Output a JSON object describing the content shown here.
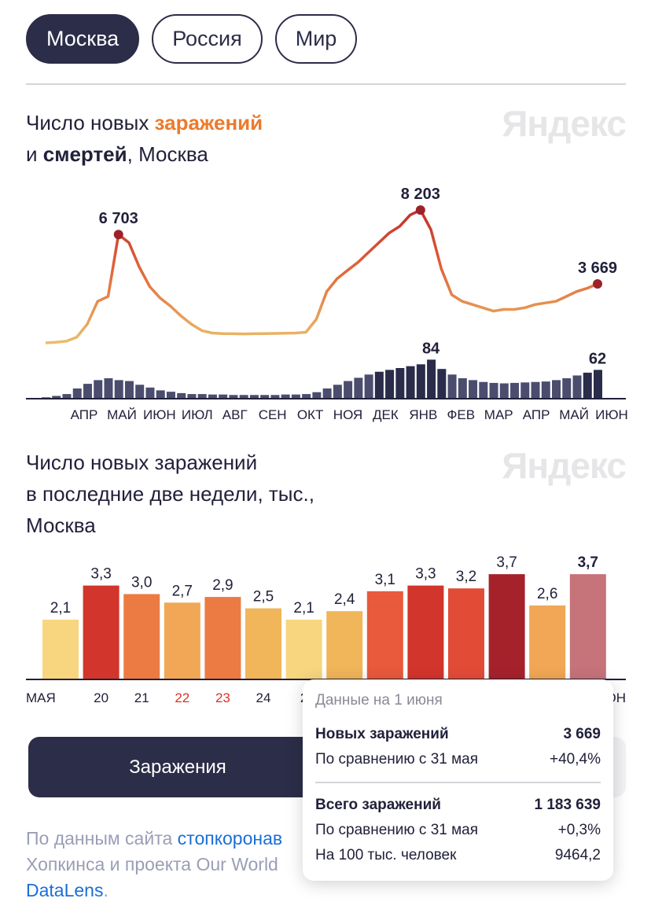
{
  "region_tabs": [
    {
      "label": "Москва",
      "active": true
    },
    {
      "label": "Россия",
      "active": false
    },
    {
      "label": "Мир",
      "active": false
    }
  ],
  "watermark": "Яндекс",
  "chart1": {
    "title_line1_a": "Число новых ",
    "title_line1_b": "заражений",
    "title_line2_a": "и ",
    "title_line2_b": "смертей",
    "title_line2_c": ", Москва"
  },
  "chart2": {
    "title_line1": "Число новых заражений",
    "title_line2": "в последние две недели, тыс.,",
    "title_line3": "Москва"
  },
  "chart_data": [
    {
      "type": "line",
      "title": "Число новых заражений и смертей, Москва",
      "months": [
        "АПР",
        "МАЙ",
        "ИЮН",
        "ИЮЛ",
        "АВГ",
        "СЕН",
        "ОКТ",
        "НОЯ",
        "ДЕК",
        "ЯНВ",
        "ФЕВ",
        "МАР",
        "АПР",
        "МАЙ",
        "ИЮН"
      ],
      "series": [
        {
          "name": "заражений",
          "ylim": [
            0,
            8500
          ],
          "values": [
            50,
            80,
            150,
            400,
            1200,
            2600,
            2900,
            6703,
            6200,
            4700,
            3500,
            2800,
            2300,
            1700,
            1200,
            800,
            650,
            620,
            610,
            600,
            610,
            620,
            630,
            640,
            650,
            700,
            1500,
            3200,
            4000,
            4500,
            5000,
            5600,
            6200,
            6800,
            7200,
            7900,
            8203,
            7000,
            4600,
            3000,
            2600,
            2400,
            2200,
            2000,
            2100,
            2100,
            2200,
            2400,
            2500,
            2600,
            2900,
            3200,
            3400,
            3669
          ],
          "labels": [
            {
              "text": "6 703",
              "index": 7
            },
            {
              "text": "8 203",
              "index": 36
            },
            {
              "text": "3 669",
              "index": 53
            }
          ]
        },
        {
          "name": "смертей",
          "ylim": [
            0,
            110
          ],
          "values": [
            3,
            6,
            10,
            22,
            32,
            40,
            44,
            40,
            38,
            30,
            24,
            18,
            15,
            12,
            10,
            10,
            9,
            9,
            8,
            8,
            8,
            8,
            8,
            9,
            9,
            10,
            14,
            22,
            30,
            38,
            45,
            52,
            58,
            62,
            66,
            70,
            74,
            84,
            64,
            52,
            44,
            40,
            36,
            34,
            33,
            34,
            35,
            36,
            37,
            40,
            44,
            50,
            56,
            62
          ],
          "labels": [
            {
              "text": "84",
              "index": 37
            },
            {
              "text": "62",
              "index": 53
            }
          ]
        }
      ]
    },
    {
      "type": "bar",
      "title": "Число новых заражений в последние две недели, тыс., Москва",
      "categories": [
        "МАЯ",
        "20",
        "21",
        "22",
        "23",
        "24",
        "2",
        "",
        "",
        "",
        "",
        "",
        "",
        "ЮН"
      ],
      "weekend_categories": [
        "22",
        "23"
      ],
      "values": [
        2.1,
        3.3,
        3.0,
        2.7,
        2.9,
        2.5,
        2.1,
        2.4,
        3.1,
        3.3,
        3.2,
        3.7,
        2.6,
        3.7
      ],
      "value_labels": [
        "2,1",
        "3,3",
        "3,0",
        "2,7",
        "2,9",
        "2,5",
        "2,1",
        "2,4",
        "3,1",
        "3,3",
        "3,2",
        "3,7",
        "2,6",
        "3,7"
      ],
      "colors": [
        "#f7d67f",
        "#d2352c",
        "#ec7b43",
        "#f1a755",
        "#ec7b43",
        "#f1b55a",
        "#f7d67f",
        "#f1b55a",
        "#e9593b",
        "#d2352c",
        "#e24c37",
        "#a5222b",
        "#f1a755",
        "#c6737a"
      ],
      "ylim": [
        0,
        4
      ]
    }
  ],
  "tooltip": {
    "date": "Данные на 1 июня",
    "new_label": "Новых заражений",
    "new_value": "3 669",
    "cmp1_label": "По сравнению с 31 мая",
    "cmp1_value": "+40,4%",
    "total_label": "Всего заражений",
    "total_value": "1 183 639",
    "cmp2_label": "По сравнению с 31 мая",
    "cmp2_value": "+0,3%",
    "per100_label": "На 100 тыс. человек",
    "per100_value": "9464,2"
  },
  "buttons": {
    "infections": "Заражения"
  },
  "footer": {
    "prefix": "По данным сайта ",
    "link": "стопкоронав",
    "line2": "Хопкинса и проекта Our World",
    "link2": "DataLens",
    "end": "."
  }
}
